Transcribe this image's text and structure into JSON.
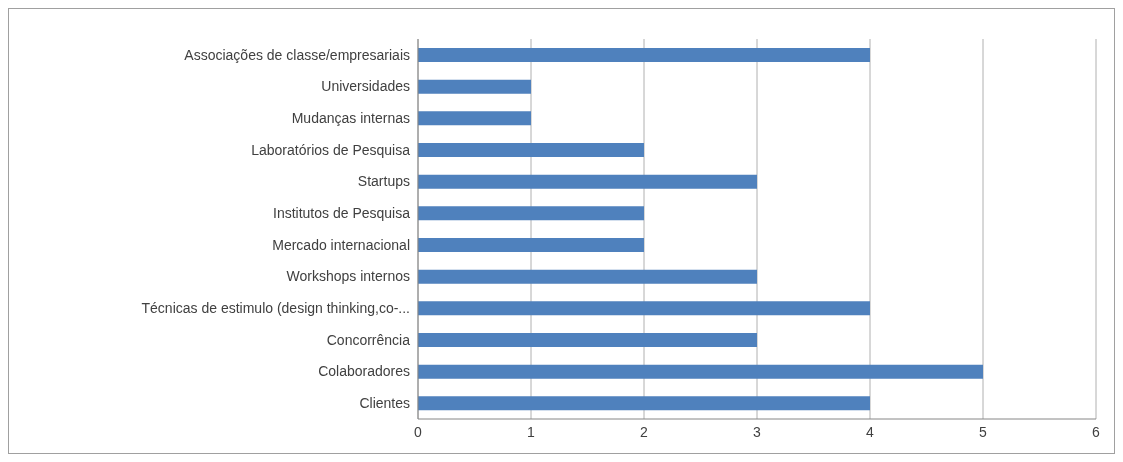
{
  "chart_data": {
    "type": "bar",
    "orientation": "horizontal",
    "categories": [
      "Associações de classe/empresariais",
      "Universidades",
      "Mudanças internas",
      "Laboratórios de Pesquisa",
      "Startups",
      "Institutos de Pesquisa",
      "Mercado internacional",
      "Workshops internos",
      "Técnicas de estimulo (design thinking,co-...",
      "Concorrência",
      "Colaboradores",
      "Clientes"
    ],
    "values": [
      4,
      1,
      1,
      2,
      3,
      2,
      2,
      3,
      4,
      3,
      5,
      4
    ],
    "color": "#4f81bd",
    "xlim": [
      0,
      6
    ],
    "xticks": [
      0,
      1,
      2,
      3,
      4,
      5,
      6
    ],
    "grid": "x"
  }
}
